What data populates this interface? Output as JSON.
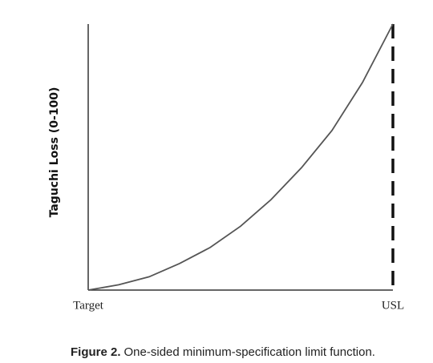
{
  "chart_data": {
    "type": "line",
    "y_label": "Taguchi Loss (0-100)",
    "caption_label": "Figure 2.",
    "caption_text": "One-sided minimum-specification limit function.",
    "x": [
      0,
      0.1,
      0.2,
      0.3,
      0.4,
      0.5,
      0.6,
      0.7,
      0.8,
      0.9,
      1
    ],
    "series": [
      {
        "color": "#555555",
        "values": [
          0,
          2,
          5,
          10,
          16,
          24,
          34,
          46,
          60,
          78,
          100
        ]
      }
    ],
    "xlim": [
      0,
      1
    ],
    "ylim": [
      0,
      100
    ],
    "xticks": [
      {
        "value": 0,
        "label": "Target"
      },
      {
        "value": 1,
        "label": "USL"
      }
    ],
    "limit_line": "dashed"
  }
}
